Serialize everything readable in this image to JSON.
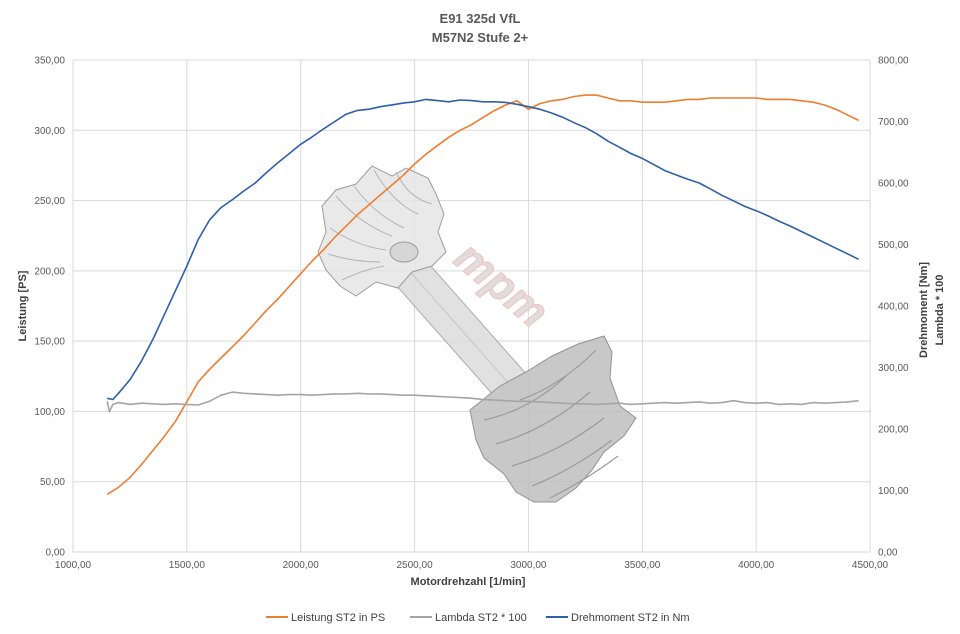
{
  "chart_data": {
    "type": "line",
    "title": "E91 325d VfL",
    "subtitle": "M57N2 Stufe 2+",
    "xlabel": "Motordrehzahl [1/min]",
    "ylabel": "Leistung [PS]",
    "y2label_line1": "Drehmoment [Nm]",
    "y2label_line2": "Lambda * 100",
    "xlim": [
      1000,
      4500
    ],
    "ylim": [
      0,
      350
    ],
    "y2lim": [
      0,
      800
    ],
    "xticks": [
      "1000,00",
      "1500,00",
      "2000,00",
      "2500,00",
      "3000,00",
      "3500,00",
      "4000,00",
      "4500,00"
    ],
    "yticks": [
      "0,00",
      "50,00",
      "100,00",
      "150,00",
      "200,00",
      "250,00",
      "300,00",
      "350,00"
    ],
    "y2ticks": [
      "0,00",
      "100,00",
      "200,00",
      "300,00",
      "400,00",
      "500,00",
      "600,00",
      "700,00",
      "800,00"
    ],
    "grid": true,
    "legend_position": "bottom",
    "watermark_text": "mpm",
    "series": [
      {
        "name": "Leistung ST2 in PS",
        "axis": "left",
        "color": "#ED7D31",
        "points": [
          [
            1150,
            41
          ],
          [
            1200,
            46
          ],
          [
            1250,
            53
          ],
          [
            1300,
            62
          ],
          [
            1350,
            72
          ],
          [
            1400,
            82
          ],
          [
            1450,
            93
          ],
          [
            1500,
            107
          ],
          [
            1550,
            121
          ],
          [
            1600,
            130
          ],
          [
            1650,
            138
          ],
          [
            1700,
            146
          ],
          [
            1750,
            154
          ],
          [
            1800,
            163
          ],
          [
            1850,
            172
          ],
          [
            1900,
            180
          ],
          [
            1950,
            189
          ],
          [
            2000,
            198
          ],
          [
            2050,
            207
          ],
          [
            2100,
            215
          ],
          [
            2150,
            224
          ],
          [
            2200,
            232
          ],
          [
            2250,
            240
          ],
          [
            2300,
            247
          ],
          [
            2350,
            254
          ],
          [
            2400,
            261
          ],
          [
            2450,
            268
          ],
          [
            2500,
            276
          ],
          [
            2550,
            283
          ],
          [
            2600,
            289
          ],
          [
            2650,
            295
          ],
          [
            2700,
            300
          ],
          [
            2750,
            304
          ],
          [
            2800,
            309
          ],
          [
            2850,
            314
          ],
          [
            2900,
            318
          ],
          [
            2950,
            321
          ],
          [
            3000,
            315
          ],
          [
            3050,
            319
          ],
          [
            3100,
            321
          ],
          [
            3150,
            322
          ],
          [
            3200,
            324
          ],
          [
            3250,
            325
          ],
          [
            3300,
            325
          ],
          [
            3350,
            323
          ],
          [
            3400,
            321
          ],
          [
            3450,
            321
          ],
          [
            3500,
            320
          ],
          [
            3550,
            320
          ],
          [
            3600,
            320
          ],
          [
            3650,
            321
          ],
          [
            3700,
            322
          ],
          [
            3750,
            322
          ],
          [
            3800,
            323
          ],
          [
            3850,
            323
          ],
          [
            3900,
            323
          ],
          [
            3950,
            323
          ],
          [
            4000,
            323
          ],
          [
            4050,
            322
          ],
          [
            4100,
            322
          ],
          [
            4150,
            322
          ],
          [
            4200,
            321
          ],
          [
            4250,
            320
          ],
          [
            4300,
            318
          ],
          [
            4350,
            315
          ],
          [
            4400,
            311
          ],
          [
            4450,
            307
          ]
        ]
      },
      {
        "name": "Lambda ST2 * 100",
        "axis": "right",
        "color": "#A5A5A5",
        "points": [
          [
            1150,
            245
          ],
          [
            1160,
            228
          ],
          [
            1175,
            240
          ],
          [
            1200,
            243
          ],
          [
            1250,
            240
          ],
          [
            1300,
            242
          ],
          [
            1350,
            241
          ],
          [
            1400,
            240
          ],
          [
            1450,
            241
          ],
          [
            1500,
            240
          ],
          [
            1550,
            239
          ],
          [
            1600,
            245
          ],
          [
            1650,
            255
          ],
          [
            1700,
            260
          ],
          [
            1750,
            258
          ],
          [
            1800,
            257
          ],
          [
            1850,
            256
          ],
          [
            1900,
            255
          ],
          [
            1950,
            256
          ],
          [
            2000,
            256
          ],
          [
            2050,
            255
          ],
          [
            2100,
            256
          ],
          [
            2150,
            257
          ],
          [
            2200,
            257
          ],
          [
            2250,
            258
          ],
          [
            2300,
            257
          ],
          [
            2350,
            257
          ],
          [
            2400,
            256
          ],
          [
            2450,
            255
          ],
          [
            2500,
            255
          ],
          [
            2550,
            254
          ],
          [
            2600,
            253
          ],
          [
            2650,
            252
          ],
          [
            2700,
            251
          ],
          [
            2750,
            250
          ],
          [
            2800,
            248
          ],
          [
            2850,
            247
          ],
          [
            2900,
            246
          ],
          [
            2950,
            245
          ],
          [
            3000,
            245
          ],
          [
            3050,
            244
          ],
          [
            3100,
            243
          ],
          [
            3150,
            242
          ],
          [
            3200,
            241
          ],
          [
            3250,
            241
          ],
          [
            3300,
            240
          ],
          [
            3350,
            241
          ],
          [
            3400,
            242
          ],
          [
            3450,
            240
          ],
          [
            3500,
            241
          ],
          [
            3550,
            242
          ],
          [
            3600,
            243
          ],
          [
            3650,
            242
          ],
          [
            3700,
            243
          ],
          [
            3750,
            244
          ],
          [
            3800,
            242
          ],
          [
            3850,
            243
          ],
          [
            3900,
            246
          ],
          [
            3950,
            243
          ],
          [
            4000,
            242
          ],
          [
            4050,
            243
          ],
          [
            4100,
            240
          ],
          [
            4150,
            241
          ],
          [
            4200,
            240
          ],
          [
            4250,
            243
          ],
          [
            4300,
            242
          ],
          [
            4350,
            243
          ],
          [
            4400,
            244
          ],
          [
            4450,
            246
          ]
        ]
      },
      {
        "name": "Drehmoment ST2 in Nm",
        "axis": "right",
        "color": "#2E5FA8",
        "points": [
          [
            1150,
            250
          ],
          [
            1175,
            248
          ],
          [
            1200,
            258
          ],
          [
            1250,
            280
          ],
          [
            1300,
            310
          ],
          [
            1350,
            345
          ],
          [
            1400,
            385
          ],
          [
            1450,
            425
          ],
          [
            1500,
            465
          ],
          [
            1550,
            508
          ],
          [
            1600,
            540
          ],
          [
            1650,
            560
          ],
          [
            1700,
            573
          ],
          [
            1750,
            587
          ],
          [
            1800,
            600
          ],
          [
            1850,
            617
          ],
          [
            1900,
            633
          ],
          [
            1950,
            648
          ],
          [
            2000,
            663
          ],
          [
            2050,
            675
          ],
          [
            2100,
            688
          ],
          [
            2150,
            700
          ],
          [
            2200,
            712
          ],
          [
            2250,
            718
          ],
          [
            2300,
            720
          ],
          [
            2350,
            724
          ],
          [
            2400,
            727
          ],
          [
            2450,
            730
          ],
          [
            2500,
            732
          ],
          [
            2550,
            736
          ],
          [
            2600,
            734
          ],
          [
            2650,
            732
          ],
          [
            2700,
            735
          ],
          [
            2750,
            734
          ],
          [
            2800,
            732
          ],
          [
            2850,
            732
          ],
          [
            2900,
            731
          ],
          [
            2950,
            728
          ],
          [
            3000,
            724
          ],
          [
            3050,
            720
          ],
          [
            3100,
            714
          ],
          [
            3150,
            707
          ],
          [
            3200,
            698
          ],
          [
            3250,
            690
          ],
          [
            3300,
            680
          ],
          [
            3350,
            668
          ],
          [
            3400,
            658
          ],
          [
            3450,
            648
          ],
          [
            3500,
            640
          ],
          [
            3550,
            630
          ],
          [
            3600,
            620
          ],
          [
            3650,
            613
          ],
          [
            3700,
            606
          ],
          [
            3750,
            600
          ],
          [
            3800,
            590
          ],
          [
            3850,
            580
          ],
          [
            3900,
            571
          ],
          [
            3950,
            562
          ],
          [
            4000,
            555
          ],
          [
            4050,
            547
          ],
          [
            4100,
            538
          ],
          [
            4150,
            530
          ],
          [
            4200,
            521
          ],
          [
            4250,
            512
          ],
          [
            4300,
            503
          ],
          [
            4350,
            494
          ],
          [
            4400,
            485
          ],
          [
            4450,
            476
          ]
        ]
      }
    ]
  }
}
